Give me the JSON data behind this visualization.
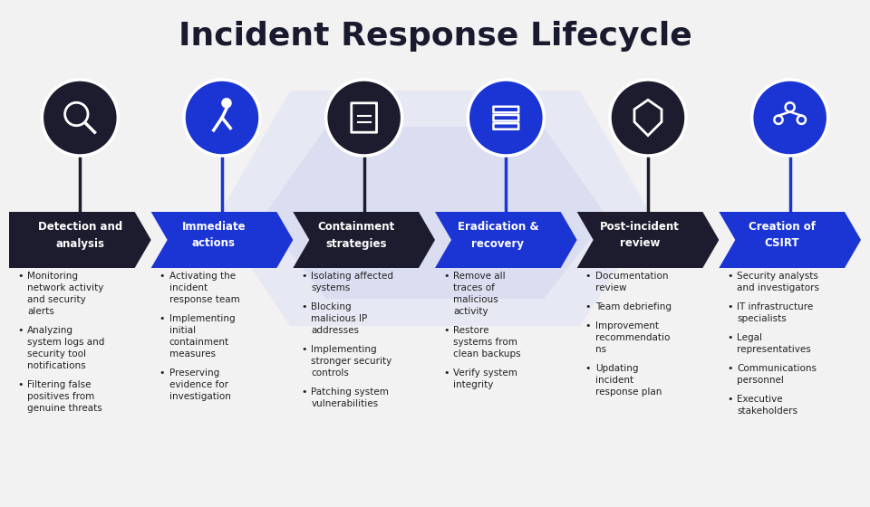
{
  "title": "Incident Response Lifecycle",
  "background_color": "#f2f2f2",
  "stages": [
    {
      "label": "Detection and\nanalysis",
      "arrow_color": "#1c1c2e",
      "circle_color": "#1c1c2e",
      "text_color": "#ffffff",
      "bullets": [
        "Monitoring\nnetwork activity\nand security\nalerts",
        "Analyzing\nsystem logs and\nsecurity tool\nnotifications",
        "Filtering false\npositives from\ngenuine threats"
      ]
    },
    {
      "label": "Immediate\nactions",
      "arrow_color": "#1a35d4",
      "circle_color": "#1a35d4",
      "text_color": "#ffffff",
      "bullets": [
        "Activating the\nincident\nresponse team",
        "Implementing\ninitial\ncontainment\nmeasures",
        "Preserving\nevidence for\ninvestigation"
      ]
    },
    {
      "label": "Containment\nstrategies",
      "arrow_color": "#1c1c2e",
      "circle_color": "#1c1c2e",
      "text_color": "#ffffff",
      "bullets": [
        "Isolating affected\nsystems",
        "Blocking\nmalicious IP\naddresses",
        "Implementing\nstronger security\ncontrols",
        "Patching system\nvulnerabilities"
      ]
    },
    {
      "label": "Eradication &\nrecovery",
      "arrow_color": "#1a35d4",
      "circle_color": "#1a35d4",
      "text_color": "#ffffff",
      "bullets": [
        "Remove all\ntraces of\nmalicious\nactivity",
        "Restore\nsystems from\nclean backups",
        "Verify system\nintegrity"
      ]
    },
    {
      "label": "Post-incident\nreview",
      "arrow_color": "#1c1c2e",
      "circle_color": "#1c1c2e",
      "text_color": "#ffffff",
      "bullets": [
        "Documentation\nreview",
        "Team debriefing",
        "Improvement\nrecommendatio\nns",
        "Updating\nincident\nresponse plan"
      ]
    },
    {
      "label": "Creation of\nCSIRT",
      "arrow_color": "#1a35d4",
      "circle_color": "#1a35d4",
      "text_color": "#ffffff",
      "bullets": [
        "Security analysts\nand investigators",
        "IT infrastructure\nspecialists",
        "Legal\nrepresentatives",
        "Communications\npersonnel",
        "Executive\nstakeholders"
      ]
    }
  ]
}
